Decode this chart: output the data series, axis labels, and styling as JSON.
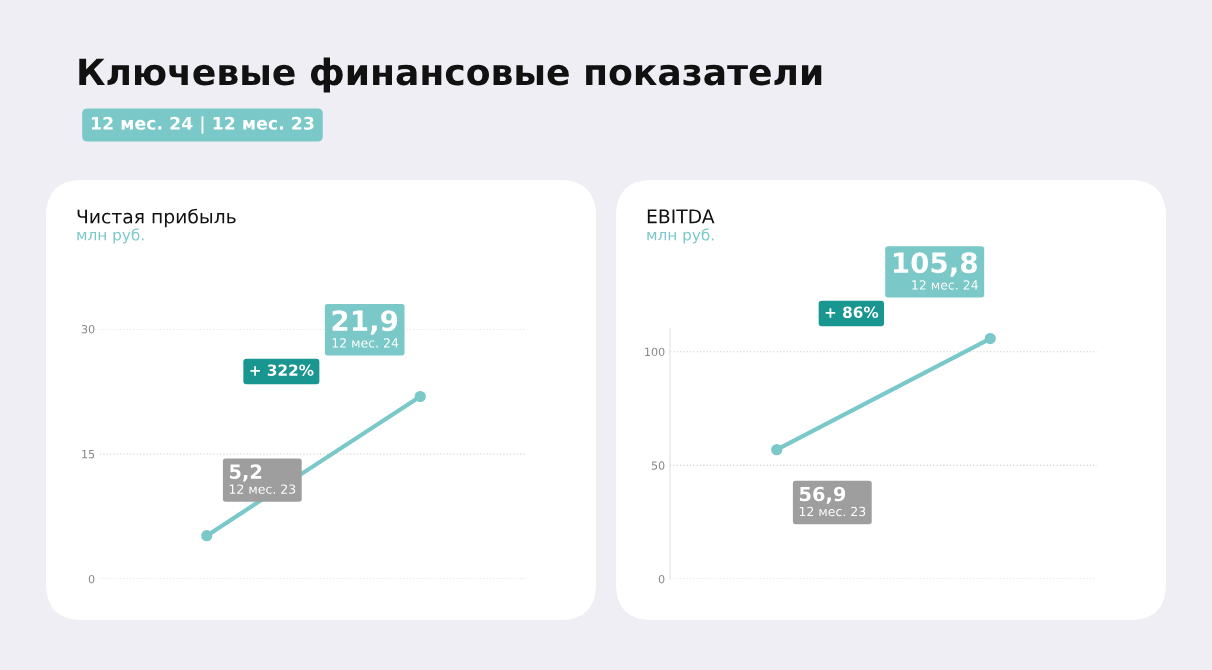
{
  "chart_data": [
    {
      "type": "other",
      "title": "Ключевые финансовые показатели",
      "subtitle": "12 мес. 24 | 12 мес. 23"
    },
    {
      "type": "line",
      "title": "Чистая прибыль",
      "subtitle": "млн руб.",
      "categories": [
        null,
        null
      ],
      "series": [
        {
          "color": "#7ac8c8",
          "values": [
            5.2,
            21.9
          ],
          "value_labels": [
            "5,2",
            "21,9"
          ]
        }
      ],
      "ylim": [
        0,
        30
      ],
      "yticks": [
        0,
        15,
        30
      ],
      "grid": "y",
      "tick_labels": "y",
      "marker": "circle",
      "annotations": [
        "+ 322%",
        "12 мес. 23",
        "12 мес. 24"
      ]
    },
    {
      "type": "line",
      "title": "EBITDA",
      "subtitle": "млн руб.",
      "categories": [
        null,
        null
      ],
      "series": [
        {
          "color": "#7ac8c8",
          "values": [
            56.9,
            105.8
          ],
          "value_labels": [
            "56,9",
            "105,8"
          ]
        }
      ],
      "ylim": [
        0,
        110
      ],
      "yticks": [
        0,
        50,
        100
      ],
      "grid": "y",
      "tick_labels": "y",
      "marker": "circle",
      "annotations": [
        "+ 86%",
        "12 мес. 23",
        "12 мес. 24"
      ]
    }
  ]
}
